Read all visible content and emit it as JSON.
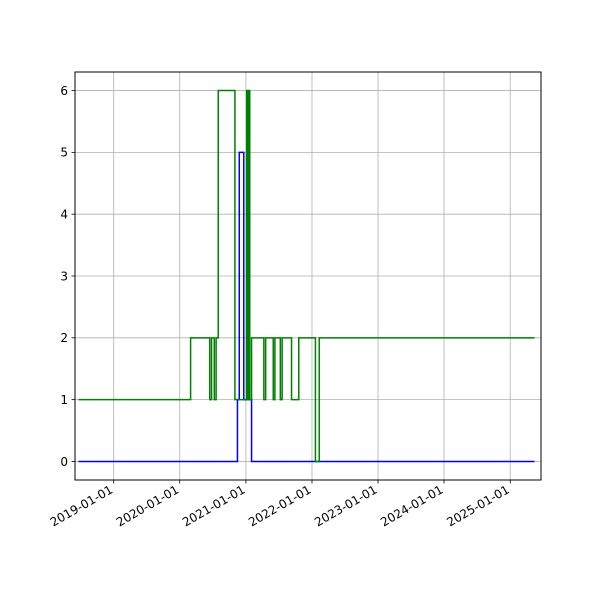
{
  "chart_data": {
    "type": "line",
    "title": "",
    "xlabel": "",
    "ylabel": "",
    "x_axis_type": "date",
    "xlim": [
      "2018-06-01",
      "2025-06-20"
    ],
    "ylim": [
      -0.3,
      6.3
    ],
    "grid": true,
    "legend": "none",
    "x_ticks": [
      "2019-01-01",
      "2020-01-01",
      "2021-01-01",
      "2022-01-01",
      "2023-01-01",
      "2024-01-01",
      "2025-01-01"
    ],
    "y_ticks": [
      0,
      1,
      2,
      3,
      4,
      5,
      6
    ],
    "series": [
      {
        "color": "#0000ff",
        "step": "post",
        "points": [
          [
            "2018-06-20",
            0
          ],
          [
            "2020-11-15",
            1
          ],
          [
            "2020-11-25",
            5
          ],
          [
            "2020-12-20",
            1
          ],
          [
            "2021-01-05",
            5
          ],
          [
            "2021-01-15",
            1
          ],
          [
            "2021-02-01",
            0
          ],
          [
            "2025-05-15",
            0
          ]
        ]
      },
      {
        "color": "#008000",
        "step": "post",
        "points": [
          [
            "2018-06-20",
            1
          ],
          [
            "2020-03-01",
            2
          ],
          [
            "2020-06-15",
            1
          ],
          [
            "2020-06-25",
            2
          ],
          [
            "2020-07-10",
            1
          ],
          [
            "2020-07-20",
            2
          ],
          [
            "2020-08-01",
            6
          ],
          [
            "2020-11-01",
            1
          ],
          [
            "2021-01-05",
            6
          ],
          [
            "2021-01-10",
            1
          ],
          [
            "2021-01-15",
            6
          ],
          [
            "2021-01-22",
            1
          ],
          [
            "2021-02-01",
            2
          ],
          [
            "2021-04-10",
            1
          ],
          [
            "2021-04-20",
            2
          ],
          [
            "2021-06-01",
            1
          ],
          [
            "2021-06-10",
            2
          ],
          [
            "2021-07-10",
            1
          ],
          [
            "2021-07-20",
            2
          ],
          [
            "2021-09-10",
            1
          ],
          [
            "2021-10-01",
            1
          ],
          [
            "2021-10-20",
            2
          ],
          [
            "2022-01-20",
            0
          ],
          [
            "2022-02-10",
            2
          ],
          [
            "2025-05-15",
            2
          ]
        ]
      }
    ]
  }
}
